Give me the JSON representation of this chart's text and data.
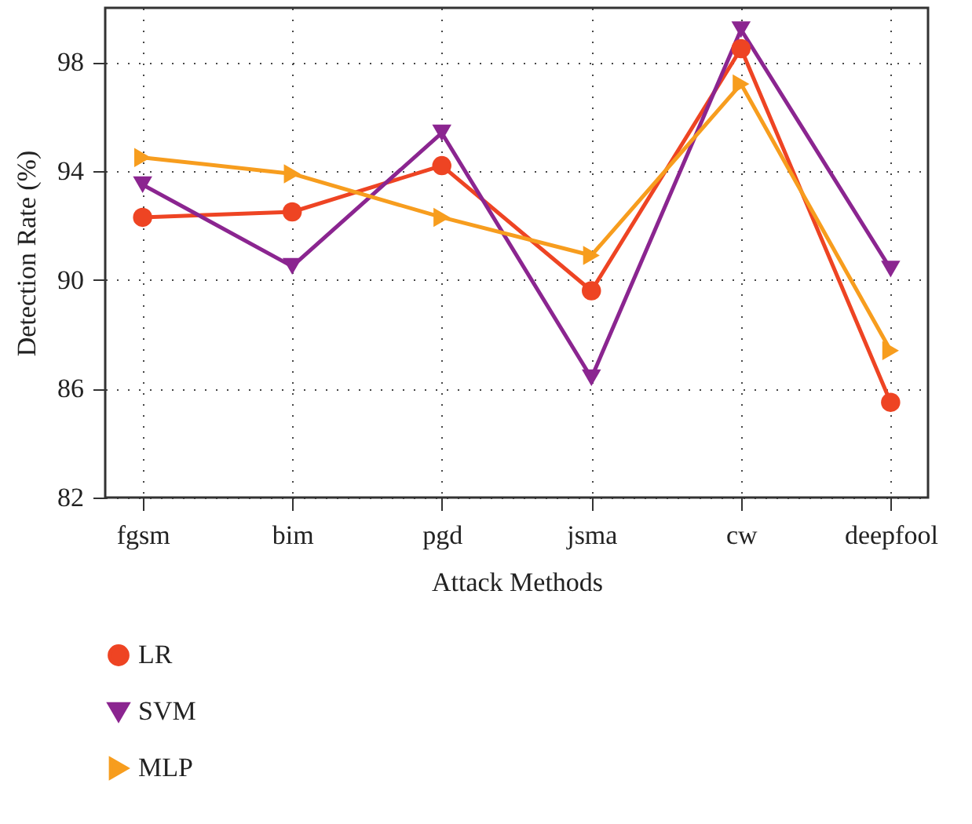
{
  "chart_data": {
    "type": "line",
    "xlabel": "Attack Methods",
    "ylabel": "Detection Rate (%)",
    "categories": [
      "fgsm",
      "bim",
      "pgd",
      "jsma",
      "cw",
      "deepfool"
    ],
    "series": [
      {
        "name": "LR",
        "color": "#ee4423",
        "marker": "circle",
        "values": [
          92.3,
          92.5,
          94.2,
          89.6,
          98.5,
          85.5
        ]
      },
      {
        "name": "SVM",
        "color": "#8b2590",
        "marker": "triangle-down",
        "values": [
          93.5,
          90.5,
          95.4,
          86.4,
          99.2,
          90.4
        ]
      },
      {
        "name": "MLP",
        "color": "#f79d1e",
        "marker": "triangle-right",
        "values": [
          94.5,
          93.9,
          92.3,
          90.9,
          97.2,
          87.4
        ]
      }
    ],
    "ylim": [
      82,
      100
    ],
    "yticks": [
      82,
      86,
      90,
      94,
      98
    ],
    "grid": true,
    "legend": "bottom",
    "line_style": "solid"
  }
}
